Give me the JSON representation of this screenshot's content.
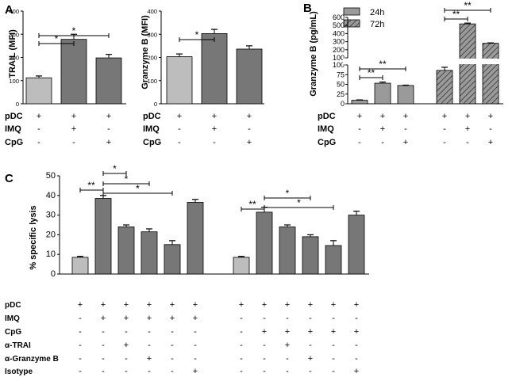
{
  "colors": {
    "light": "#bdbdbd",
    "dark": "#777777",
    "hatch_fill": "#9a9a9a",
    "axis": "#000000"
  },
  "chart_data": [
    {
      "id": "A1",
      "panel_label": "A",
      "type": "bar",
      "ylabel": "TRAIL (MFI)",
      "ylim": [
        0,
        400
      ],
      "yticks": [
        "0",
        "100",
        "200",
        "300",
        "400"
      ],
      "values": [
        112,
        278,
        198
      ],
      "errors": [
        8,
        22,
        15
      ],
      "colors": [
        "light",
        "dark",
        "dark"
      ],
      "rows": [
        {
          "label": "pDC",
          "signs": [
            "+",
            "+",
            "+"
          ]
        },
        {
          "label": "IMQ",
          "signs": [
            "-",
            "+",
            "-"
          ]
        },
        {
          "label": "CpG",
          "signs": [
            "-",
            "-",
            "+"
          ]
        }
      ],
      "significance": [
        {
          "from": 0,
          "to": 1,
          "label": "*"
        },
        {
          "from": 0,
          "to": 2,
          "label": "*"
        }
      ]
    },
    {
      "id": "A2",
      "type": "bar",
      "ylabel": "Granzyme B (MFI)",
      "ylim": [
        0,
        400
      ],
      "yticks": [
        "0",
        "100",
        "200",
        "300",
        "400"
      ],
      "values": [
        203,
        303,
        236
      ],
      "errors": [
        12,
        18,
        14
      ],
      "colors": [
        "light",
        "dark",
        "dark"
      ],
      "rows": [
        {
          "label": "pDC",
          "signs": [
            "+",
            "+",
            "+"
          ]
        },
        {
          "label": "IMQ",
          "signs": [
            "-",
            "+",
            "-"
          ]
        },
        {
          "label": "CpG",
          "signs": [
            "-",
            "-",
            "+"
          ]
        }
      ],
      "significance": [
        {
          "from": 0,
          "to": 1,
          "label": "*"
        }
      ]
    },
    {
      "id": "B",
      "panel_label": "B",
      "type": "bar",
      "ylabel": "Granzyme B (pg/mL)",
      "axis_break": true,
      "lower_ticks": [
        "0",
        "25",
        "50",
        "75",
        "100"
      ],
      "upper_ticks": [
        "100",
        "200",
        "300",
        "400",
        "500",
        "600"
      ],
      "legend": [
        "24h",
        "72h"
      ],
      "series": [
        {
          "name": "24h",
          "values": [
            9,
            53,
            47
          ],
          "errors": [
            1,
            3,
            1
          ]
        },
        {
          "name": "72h",
          "values": [
            86,
            520,
            280
          ],
          "errors": [
            8,
            10,
            5
          ]
        }
      ],
      "rows": [
        {
          "label": "pDC",
          "signs": [
            "+",
            "+",
            "+",
            "+",
            "+",
            "+"
          ]
        },
        {
          "label": "IMQ",
          "signs": [
            "-",
            "+",
            "-",
            "-",
            "+",
            "-"
          ]
        },
        {
          "label": "CpG",
          "signs": [
            "-",
            "-",
            "+",
            "-",
            "-",
            "+"
          ]
        }
      ],
      "significance": [
        {
          "from": 0,
          "to": 1,
          "label": "**"
        },
        {
          "from": 0,
          "to": 2,
          "label": "**"
        },
        {
          "from": 3,
          "to": 4,
          "label": "**"
        },
        {
          "from": 3,
          "to": 5,
          "label": "**"
        }
      ]
    },
    {
      "id": "C",
      "panel_label": "C",
      "type": "bar",
      "ylabel": "% specific lysis",
      "ylim": [
        0,
        50
      ],
      "yticks": [
        "0",
        "10",
        "20",
        "30",
        "40",
        "50"
      ],
      "values": [
        8.5,
        38.5,
        24,
        21.5,
        15,
        36.5,
        8.5,
        31.5,
        24,
        19,
        14.5,
        30
      ],
      "errors": [
        0.5,
        1.5,
        1,
        1.5,
        2,
        1.5,
        0.5,
        2.5,
        1,
        1,
        2.5,
        2
      ],
      "colors": [
        "light",
        "dark",
        "dark",
        "dark",
        "dark",
        "dark",
        "light",
        "dark",
        "dark",
        "dark",
        "dark",
        "dark"
      ],
      "rows": [
        {
          "label": "pDC",
          "signs": [
            "+",
            "+",
            "+",
            "+",
            "+",
            "+",
            "+",
            "+",
            "+",
            "+",
            "+",
            "+"
          ]
        },
        {
          "label": "IMQ",
          "signs": [
            "-",
            "+",
            "+",
            "+",
            "+",
            "+",
            "-",
            "-",
            "-",
            "-",
            "-",
            "-"
          ]
        },
        {
          "label": "CpG",
          "signs": [
            "-",
            "-",
            "-",
            "-",
            "-",
            "-",
            "-",
            "+",
            "+",
            "+",
            "+",
            "+"
          ]
        },
        {
          "label": "α-TRAI",
          "signs": [
            "-",
            "-",
            "+",
            "-",
            "-",
            "-",
            "-",
            "-",
            "+",
            "-",
            "-",
            "-"
          ]
        },
        {
          "label": "α-Granzyme B",
          "signs": [
            "-",
            "-",
            "-",
            "+",
            "-",
            "-",
            "-",
            "-",
            "-",
            "+",
            "-",
            "-"
          ]
        },
        {
          "label": "Isotype",
          "signs": [
            "-",
            "-",
            "-",
            "-",
            "-",
            "+",
            "-",
            "-",
            "-",
            "-",
            "-",
            "+"
          ]
        }
      ],
      "significance": [
        {
          "from": 0,
          "to": 1,
          "label": "**"
        },
        {
          "from": 1,
          "to": 2,
          "label": "*"
        },
        {
          "from": 1,
          "to": 3,
          "label": "*"
        },
        {
          "from": 1,
          "to": 4,
          "label": "*"
        },
        {
          "from": 6,
          "to": 7,
          "label": "**"
        },
        {
          "from": 7,
          "to": 9,
          "label": "*"
        },
        {
          "from": 7,
          "to": 10,
          "label": "*"
        }
      ]
    }
  ]
}
